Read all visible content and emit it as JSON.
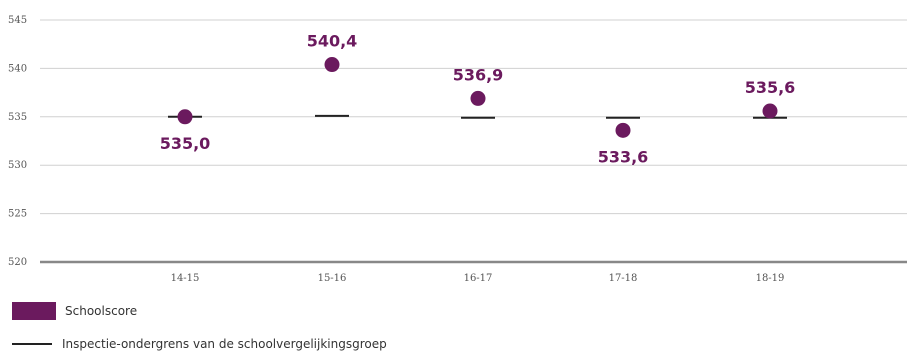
{
  "chart_data": {
    "type": "scatter",
    "categories": [
      "14-15",
      "15-16",
      "16-17",
      "17-18",
      "18-19"
    ],
    "series": [
      {
        "name": "Schoolscore",
        "values": [
          535.0,
          540.4,
          536.9,
          533.6,
          535.6
        ],
        "labels": [
          "535,0",
          "540,4",
          "536,9",
          "533,6",
          "535,6"
        ],
        "color": "#6b1a5e"
      },
      {
        "name": "Inspectie-ondergrens van de schoolvergelijkingsgroep",
        "values": [
          535.0,
          535.1,
          534.9,
          534.9,
          534.9
        ],
        "color": "#222222"
      }
    ],
    "yticks": [
      "545",
      "540",
      "535",
      "530",
      "525",
      "520"
    ],
    "ylim": [
      520,
      545
    ],
    "grid": true,
    "legend_position": "bottom-left"
  },
  "legend": {
    "school_label": "Schoolscore",
    "threshold_label": "Inspectie-ondergrens van de schoolvergelijkingsgroep"
  }
}
